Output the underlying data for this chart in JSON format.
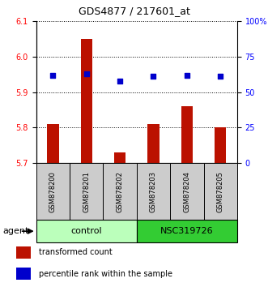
{
  "title": "GDS4877 / 217601_at",
  "samples": [
    "GSM878200",
    "GSM878201",
    "GSM878202",
    "GSM878203",
    "GSM878204",
    "GSM878205"
  ],
  "bar_values": [
    5.81,
    6.05,
    5.73,
    5.81,
    5.86,
    5.8
  ],
  "dot_percentiles": [
    62,
    63,
    58,
    61,
    62,
    61
  ],
  "bar_color": "#bb1100",
  "dot_color": "#0000cc",
  "ylim_left": [
    5.7,
    6.1
  ],
  "ylim_right": [
    0,
    100
  ],
  "yticks_left": [
    5.7,
    5.8,
    5.9,
    6.0,
    6.1
  ],
  "yticks_right": [
    0,
    25,
    50,
    75,
    100
  ],
  "ytick_labels_right": [
    "0",
    "25",
    "50",
    "75",
    "100%"
  ],
  "groups": [
    {
      "label": "control",
      "indices": [
        0,
        1,
        2
      ],
      "color": "#bbffbb"
    },
    {
      "label": "NSC319726",
      "indices": [
        3,
        4,
        5
      ],
      "color": "#33cc33"
    }
  ],
  "agent_label": "agent",
  "legend_items": [
    {
      "label": "transformed count",
      "color": "#bb1100"
    },
    {
      "label": "percentile rank within the sample",
      "color": "#0000cc"
    }
  ],
  "grid_linestyle": ":",
  "grid_linewidth": 0.7,
  "bar_width": 0.35,
  "plot_bg": "#ffffff",
  "sample_area_color": "#cccccc",
  "title_fontsize": 9,
  "tick_fontsize": 7,
  "sample_fontsize": 6,
  "agent_fontsize": 8,
  "group_fontsize": 8,
  "legend_fontsize": 7
}
